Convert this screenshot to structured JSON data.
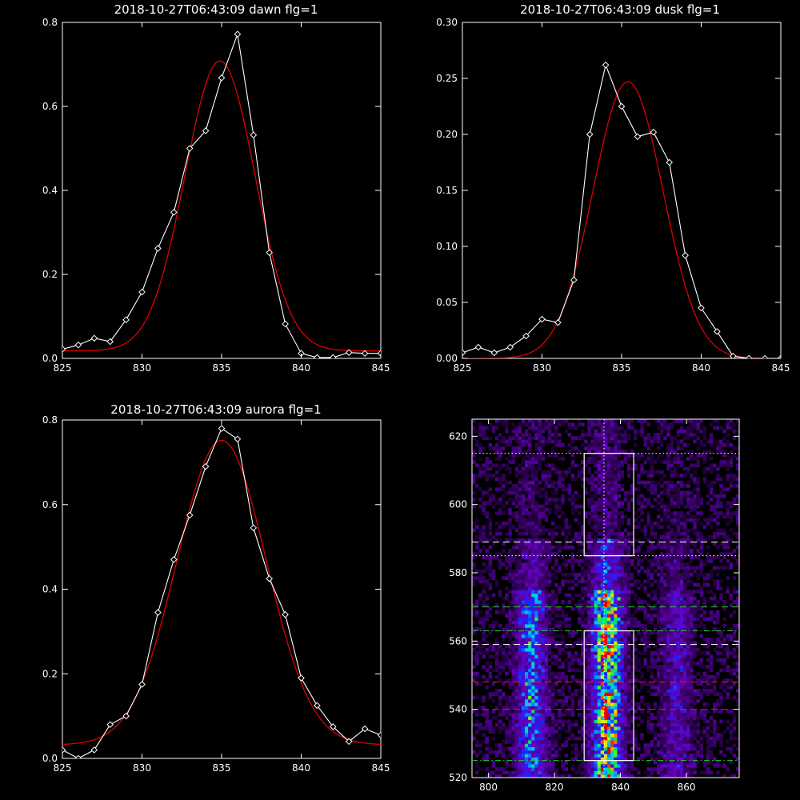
{
  "colors": {
    "background": "#000000",
    "axis": "#ffffff",
    "observed": "#ffffff",
    "fit": "#dd0000",
    "marker": "#ffffff"
  },
  "chart_data": [
    {
      "type": "line",
      "title": "2018-10-27T06:43:09 dawn flg=1",
      "xlabel": "",
      "ylabel": "",
      "xlim": [
        825,
        845
      ],
      "ylim": [
        0,
        0.8
      ],
      "xticks": [
        "825",
        "830",
        "835",
        "840",
        "845"
      ],
      "yticks": [
        "0.0",
        "0.2",
        "0.4",
        "0.6",
        "0.8"
      ],
      "series": [
        {
          "style": "line-diamond",
          "x": [
            825,
            826,
            827,
            828,
            829,
            830,
            831,
            832,
            833,
            834,
            835,
            836,
            837,
            838,
            839,
            840,
            841,
            842,
            843,
            844,
            845
          ],
          "y": [
            0.022,
            0.032,
            0.048,
            0.04,
            0.092,
            0.158,
            0.262,
            0.348,
            0.5,
            0.542,
            0.668,
            0.772,
            0.532,
            0.252,
            0.082,
            0.012,
            0.002,
            0.002,
            0.014,
            0.012,
            0.012
          ]
        },
        {
          "style": "fit-curve",
          "gaussian": {
            "amplitude": 0.69,
            "center": 834.9,
            "sigma": 2.2,
            "offset": 0.018
          }
        }
      ]
    },
    {
      "type": "line",
      "title": "2018-10-27T06:43:09 dusk flg=1",
      "xlabel": "",
      "ylabel": "",
      "xlim": [
        825,
        845
      ],
      "ylim": [
        0,
        0.3
      ],
      "xticks": [
        "825",
        "830",
        "835",
        "840",
        "845"
      ],
      "yticks": [
        "0.00",
        "0.05",
        "0.10",
        "0.15",
        "0.20",
        "0.25",
        "0.30"
      ],
      "series": [
        {
          "style": "line-diamond",
          "x": [
            825,
            826,
            827,
            828,
            829,
            830,
            831,
            832,
            833,
            834,
            835,
            836,
            837,
            838,
            839,
            840,
            841,
            842,
            843,
            844,
            845
          ],
          "y": [
            0.005,
            0.01,
            0.005,
            0.01,
            0.02,
            0.035,
            0.032,
            0.07,
            0.2,
            0.262,
            0.225,
            0.198,
            0.202,
            0.175,
            0.092,
            0.045,
            0.024,
            0.002,
            0.0,
            0.0,
            0.0
          ]
        },
        {
          "style": "fit-curve",
          "gaussian": {
            "amplitude": 0.247,
            "center": 835.4,
            "sigma": 2.2,
            "offset": 0.0
          }
        }
      ]
    },
    {
      "type": "line",
      "title": "2018-10-27T06:43:09 aurora flg=1",
      "xlabel": "",
      "ylabel": "",
      "xlim": [
        825,
        845
      ],
      "ylim": [
        0,
        0.8
      ],
      "xticks": [
        "825",
        "830",
        "835",
        "840",
        "845"
      ],
      "yticks": [
        "0.0",
        "0.2",
        "0.4",
        "0.6",
        "0.8"
      ],
      "series": [
        {
          "style": "line-diamond",
          "x": [
            825,
            826,
            827,
            828,
            829,
            830,
            831,
            832,
            833,
            834,
            835,
            836,
            837,
            838,
            839,
            840,
            841,
            842,
            843,
            844,
            845
          ],
          "y": [
            0.02,
            0.0,
            0.02,
            0.08,
            0.1,
            0.175,
            0.345,
            0.47,
            0.575,
            0.69,
            0.78,
            0.755,
            0.545,
            0.425,
            0.34,
            0.19,
            0.125,
            0.075,
            0.04,
            0.07,
            0.055
          ]
        },
        {
          "style": "fit-curve",
          "gaussian": {
            "amplitude": 0.72,
            "center": 835.0,
            "sigma": 2.8,
            "offset": 0.032
          }
        }
      ]
    },
    {
      "type": "heatmap",
      "title": "",
      "xlabel": "",
      "ylabel": "",
      "xlim": [
        795,
        876
      ],
      "ylim": [
        520,
        625
      ],
      "xticks": [
        "800",
        "820",
        "840",
        "860"
      ],
      "yticks": [
        "520",
        "540",
        "560",
        "580",
        "600",
        "620"
      ],
      "emission_columns": [
        {
          "center_x": 813,
          "intensity": 0.55
        },
        {
          "center_x": 836,
          "intensity": 1.0
        },
        {
          "center_x": 857,
          "intensity": 0.28
        }
      ],
      "boxes": [
        {
          "x": [
            829,
            844
          ],
          "y": [
            585,
            615
          ]
        },
        {
          "x": [
            829,
            844
          ],
          "y": [
            525,
            563
          ]
        }
      ],
      "vertical_lines": [
        {
          "x": 835,
          "style": "dotted",
          "color": "#ffffff"
        }
      ],
      "horizontal_lines": [
        {
          "y": 615,
          "style": "dotted",
          "color": "#ffffff"
        },
        {
          "y": 589,
          "style": "dashed",
          "color": "#ffffff"
        },
        {
          "y": 585,
          "style": "dotted",
          "color": "#ffffff"
        },
        {
          "y": 570,
          "style": "dashed",
          "color": "#22cc22"
        },
        {
          "y": 563,
          "style": "dashdot",
          "color": "#22cc22"
        },
        {
          "y": 559,
          "style": "dashed",
          "color": "#ffffff"
        },
        {
          "y": 548,
          "style": "dashed",
          "color": "#dd2222"
        },
        {
          "y": 540,
          "style": "dashed",
          "color": "#dd2222"
        },
        {
          "y": 525,
          "style": "dashdot",
          "color": "#22cc22"
        }
      ]
    }
  ]
}
